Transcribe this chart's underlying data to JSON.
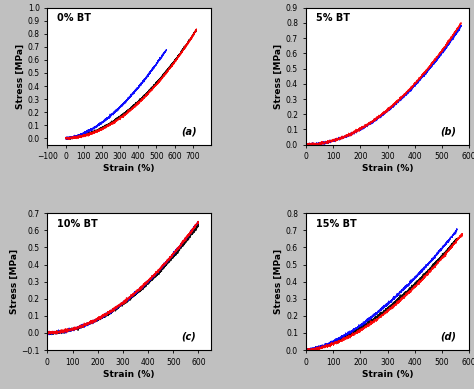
{
  "panels": [
    {
      "title": "0% BT",
      "label": "(a)",
      "xlim": [
        -100,
        800
      ],
      "xticks": [
        -100,
        0,
        100,
        200,
        300,
        400,
        500,
        600,
        700
      ],
      "ylim": [
        -0.05,
        1.0
      ],
      "yticks": [
        0.0,
        0.1,
        0.2,
        0.3,
        0.4,
        0.5,
        0.6,
        0.7,
        0.8,
        0.9,
        1.0
      ],
      "curves": [
        {
          "color": "#000000",
          "power": 1.85,
          "target_stress": 0.83,
          "end_strain": 720
        },
        {
          "color": "#0000FF",
          "power": 1.7,
          "target_stress": 0.68,
          "end_strain": 555
        },
        {
          "color": "#FF0000",
          "power": 1.92,
          "target_stress": 0.83,
          "end_strain": 720
        }
      ]
    },
    {
      "title": "5% BT",
      "label": "(b)",
      "xlim": [
        0,
        600
      ],
      "xticks": [
        0,
        100,
        200,
        300,
        400,
        500,
        600
      ],
      "ylim": [
        0.0,
        0.9
      ],
      "yticks": [
        0.0,
        0.1,
        0.2,
        0.3,
        0.4,
        0.5,
        0.6,
        0.7,
        0.8,
        0.9
      ],
      "curves": [
        {
          "color": "#0000FF",
          "power": 1.95,
          "target_stress": 0.78,
          "end_strain": 570
        },
        {
          "color": "#FF0000",
          "power": 1.95,
          "target_stress": 0.8,
          "end_strain": 570
        }
      ]
    },
    {
      "title": "10% BT",
      "label": "(c)",
      "xlim": [
        0,
        650
      ],
      "xticks": [
        0,
        100,
        200,
        300,
        400,
        500,
        600
      ],
      "ylim": [
        -0.1,
        0.7
      ],
      "yticks": [
        -0.1,
        0.0,
        0.1,
        0.2,
        0.3,
        0.4,
        0.5,
        0.6,
        0.7
      ],
      "curves": [
        {
          "color": "#000000",
          "power": 1.9,
          "target_stress": 0.63,
          "end_strain": 600
        },
        {
          "color": "#0000FF",
          "power": 1.9,
          "target_stress": 0.65,
          "end_strain": 600
        },
        {
          "color": "#FF0000",
          "power": 1.88,
          "target_stress": 0.65,
          "end_strain": 600
        }
      ]
    },
    {
      "title": "15% BT",
      "label": "(d)",
      "xlim": [
        0,
        600
      ],
      "xticks": [
        0,
        100,
        200,
        300,
        400,
        500,
        600
      ],
      "ylim": [
        0.0,
        0.8
      ],
      "yticks": [
        0.0,
        0.1,
        0.2,
        0.3,
        0.4,
        0.5,
        0.6,
        0.7,
        0.8
      ],
      "curves": [
        {
          "color": "#000000",
          "power": 1.6,
          "target_stress": 0.65,
          "end_strain": 555
        },
        {
          "color": "#0000FF",
          "power": 1.55,
          "target_stress": 0.7,
          "end_strain": 555
        },
        {
          "color": "#FF0000",
          "power": 1.68,
          "target_stress": 0.68,
          "end_strain": 575
        }
      ]
    }
  ],
  "xlabel": "Strain (%)",
  "ylabel": "Stress [MPa]",
  "bg_color": "#ffffff",
  "figure_bg": "#c0c0c0",
  "noise_level": 0.004
}
